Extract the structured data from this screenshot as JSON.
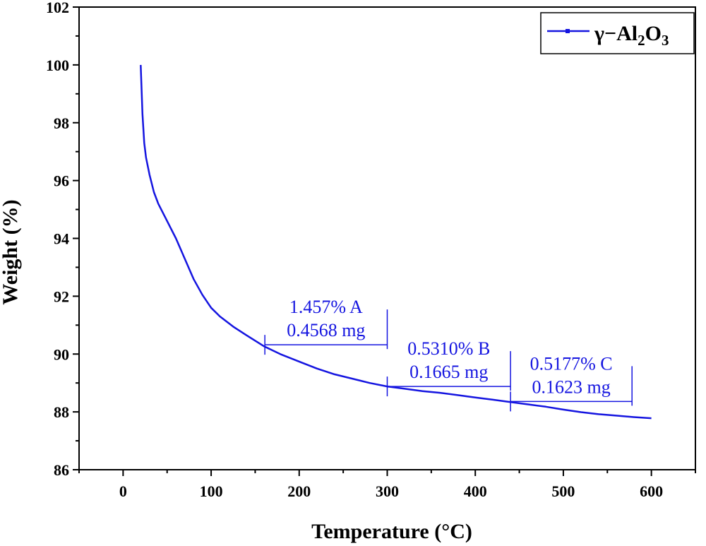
{
  "chart_data": {
    "type": "line",
    "title": "",
    "xlabel": "Temperature (°C)",
    "ylabel": "Weight (%)",
    "xlim": [
      -50,
      650
    ],
    "ylim": [
      86,
      102
    ],
    "xticks": [
      0,
      100,
      200,
      300,
      400,
      500,
      600
    ],
    "yticks": [
      86,
      88,
      90,
      92,
      94,
      96,
      98,
      100,
      102
    ],
    "xtick_labels": [
      "0",
      "100",
      "200",
      "300",
      "400",
      "500",
      "600"
    ],
    "ytick_labels": [
      "86",
      "88",
      "90",
      "92",
      "94",
      "96",
      "98",
      "100",
      "102"
    ],
    "grid": false,
    "legend_position": "top-right",
    "series": [
      {
        "name": "γ−Al2O3",
        "legend_parts": [
          "γ−Al",
          "2",
          "O",
          "3"
        ],
        "color": "#1515e0",
        "x": [
          20,
          22,
          24,
          26,
          30,
          35,
          40,
          50,
          60,
          70,
          80,
          90,
          100,
          110,
          125,
          140,
          160,
          180,
          200,
          220,
          240,
          260,
          280,
          300,
          320,
          340,
          360,
          380,
          400,
          420,
          440,
          460,
          480,
          500,
          520,
          540,
          560,
          580,
          600
        ],
        "y": [
          100.0,
          98.3,
          97.3,
          96.8,
          96.2,
          95.6,
          95.2,
          94.6,
          94.0,
          93.3,
          92.6,
          92.05,
          91.6,
          91.3,
          90.95,
          90.65,
          90.27,
          89.98,
          89.74,
          89.5,
          89.3,
          89.15,
          89.0,
          88.88,
          88.8,
          88.72,
          88.66,
          88.58,
          88.5,
          88.42,
          88.34,
          88.26,
          88.18,
          88.08,
          87.99,
          87.92,
          87.87,
          87.82,
          87.78
        ]
      }
    ],
    "annotations": [
      {
        "label_top": "1.457% A",
        "label_bottom": "0.4568 mg",
        "x_start": 161,
        "x_end": 300,
        "y": 90.32
      },
      {
        "label_top": "0.5310% B",
        "label_bottom": "0.1665 mg",
        "x_start": 300,
        "x_end": 440,
        "y": 88.88
      },
      {
        "label_top": "0.5177% C",
        "label_bottom": "0.1623 mg",
        "x_start": 440,
        "x_end": 578,
        "y": 88.36
      }
    ]
  }
}
